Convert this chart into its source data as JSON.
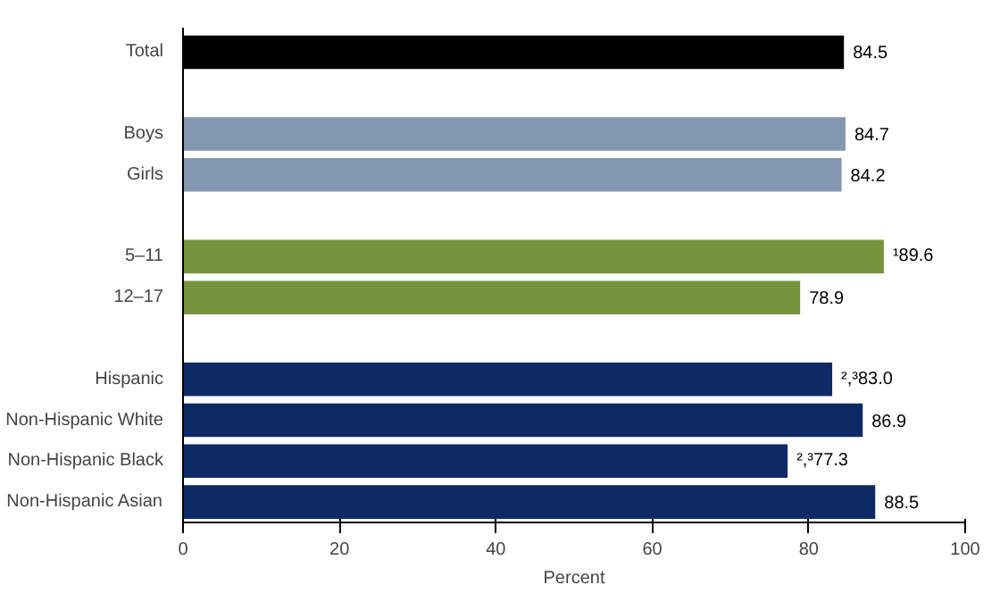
{
  "chart_data": {
    "type": "bar",
    "orientation": "horizontal",
    "xlabel": "Percent",
    "categories": [
      "Total",
      null,
      "Boys",
      "Girls",
      null,
      "5–11",
      "12–17",
      null,
      "Hispanic",
      "Non-Hispanic White",
      "Non-Hispanic Black",
      "Non-Hispanic Asian"
    ],
    "values": [
      84.5,
      null,
      84.7,
      84.2,
      null,
      89.6,
      78.9,
      null,
      83.0,
      86.9,
      77.3,
      88.5
    ],
    "colors": [
      "#000000",
      null,
      "#8497b0",
      "#8497b0",
      null,
      "#77933c",
      "#77933c",
      null,
      "#0e2a66",
      "#0e2a66",
      "#0e2a66",
      "#0e2a66"
    ],
    "value_labels": [
      "84.5",
      null,
      "84.7",
      "84.2",
      null,
      "¹89.6",
      "78.9",
      null,
      "²,³83.0",
      "86.9",
      "²,³77.3",
      "88.5"
    ],
    "xlim": [
      0,
      100
    ],
    "xticks": [
      0,
      20,
      40,
      60,
      80,
      100
    ],
    "grid": false
  }
}
